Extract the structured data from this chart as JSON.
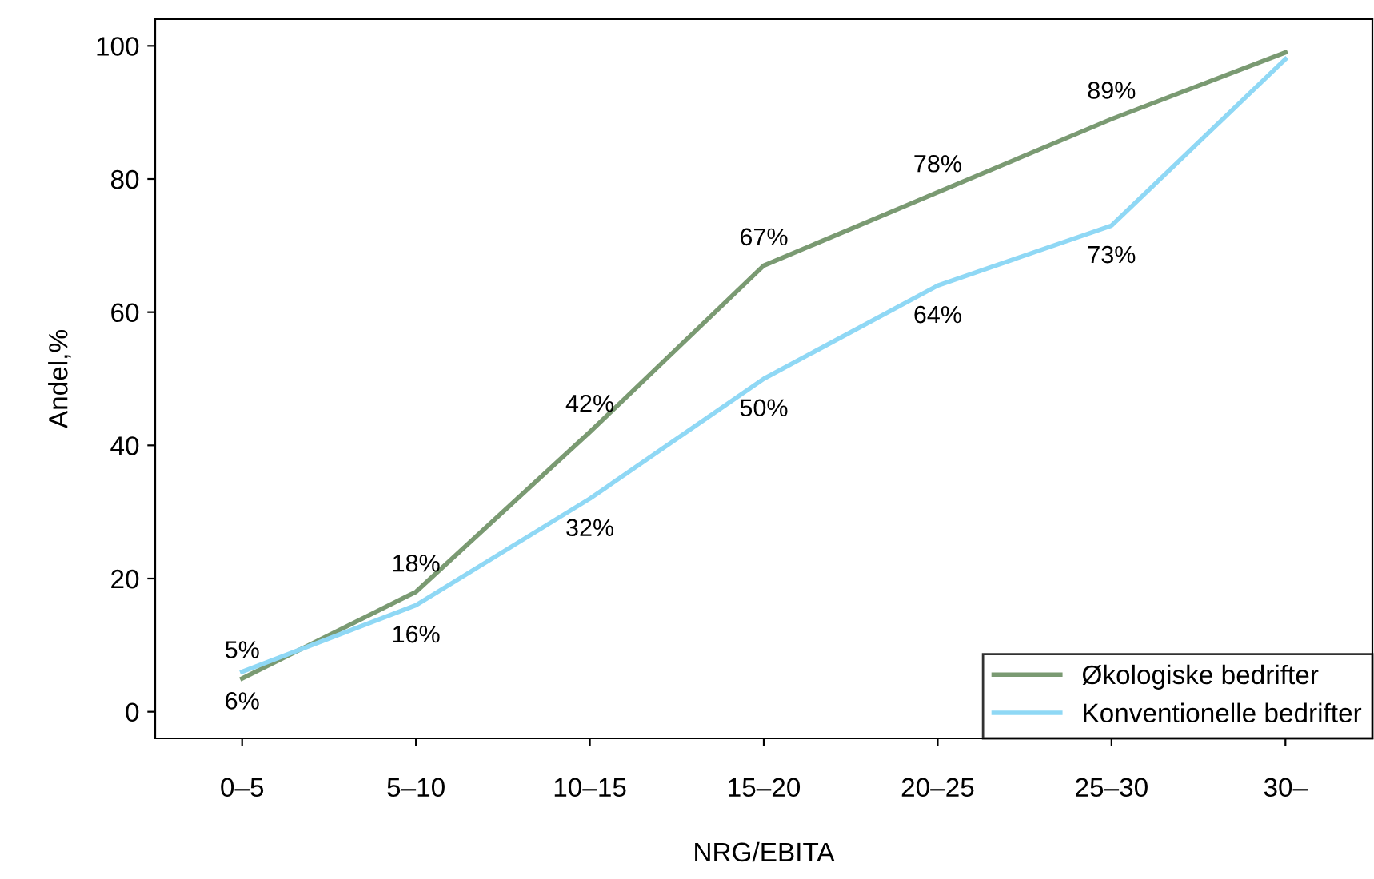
{
  "chart_data": {
    "type": "line",
    "xlabel": "NRG/EBITA",
    "ylabel": "Andel,%",
    "categories": [
      "0–5",
      "5–10",
      "10–15",
      "15–20",
      "20–25",
      "25–30",
      "30–"
    ],
    "series": [
      {
        "name": "Økologiske bedrifter",
        "color": "#7a9a72",
        "values": [
          5,
          18,
          42,
          67,
          78,
          89,
          99
        ],
        "value_labels": [
          "5%",
          "18%",
          "42%",
          "67%",
          "78%",
          "89%",
          null
        ]
      },
      {
        "name": "Konventionelle bedrifter",
        "color": "#8fd8f5",
        "values": [
          6,
          16,
          32,
          50,
          64,
          73,
          98
        ],
        "value_labels": [
          "6%",
          "16%",
          "32%",
          "50%",
          "64%",
          "73%",
          null
        ]
      }
    ],
    "ylim": [
      -4,
      104
    ],
    "yticks": [
      0,
      20,
      40,
      60,
      80,
      100
    ],
    "grid": false,
    "legend": "bottom right",
    "marker": "none",
    "line_style": "solid"
  }
}
